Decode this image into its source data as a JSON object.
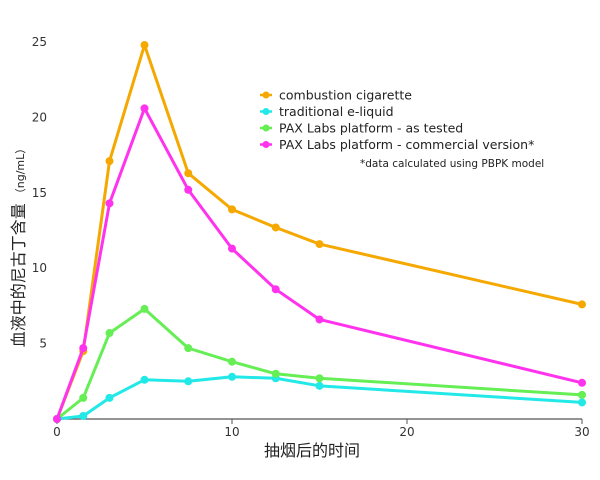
{
  "chart_data": {
    "type": "line",
    "title": "",
    "xlabel": "抽烟后的时间",
    "ylabel": "血液中的尼古丁含量",
    "ylabel_unit": "（ng/mL）",
    "xlim": [
      0,
      30
    ],
    "ylim": [
      0,
      25
    ],
    "xticks": [
      0,
      10,
      20,
      30
    ],
    "yticks": [
      5,
      10,
      15,
      20,
      25
    ],
    "x_tick_labels": [
      "0",
      "10",
      "20",
      "30"
    ],
    "y_tick_labels": [
      "5",
      "10",
      "15",
      "20",
      "25"
    ],
    "grid": false,
    "legend_position": "top-right",
    "note": "*data calculated using PBPK model",
    "series": [
      {
        "name": "combustion cigarette",
        "color": "#f5a800",
        "x": [
          0,
          1.5,
          3,
          5,
          7.5,
          10,
          12.5,
          15,
          30
        ],
        "y": [
          0,
          4.5,
          17.1,
          24.8,
          16.3,
          13.9,
          12.7,
          11.6,
          7.6
        ]
      },
      {
        "name": "traditional e-liquid",
        "color": "#22e8e8",
        "x": [
          0,
          1.5,
          3,
          5,
          7.5,
          10,
          12.5,
          15,
          30
        ],
        "y": [
          0,
          0.2,
          1.4,
          2.6,
          2.5,
          2.8,
          2.7,
          2.2,
          1.1
        ]
      },
      {
        "name": "PAX Labs platform - as tested",
        "color": "#66ee55",
        "x": [
          0,
          1.5,
          3,
          5,
          7.5,
          10,
          12.5,
          15,
          30
        ],
        "y": [
          0,
          1.4,
          5.7,
          7.3,
          4.7,
          3.8,
          3.0,
          2.7,
          1.6
        ]
      },
      {
        "name": "PAX Labs platform - commercial version*",
        "color": "#ff33ee",
        "x": [
          0,
          1.5,
          3,
          5,
          7.5,
          10,
          12.5,
          15,
          30
        ],
        "y": [
          0,
          4.7,
          14.3,
          20.6,
          15.2,
          11.3,
          8.6,
          6.6,
          2.4
        ]
      }
    ]
  }
}
